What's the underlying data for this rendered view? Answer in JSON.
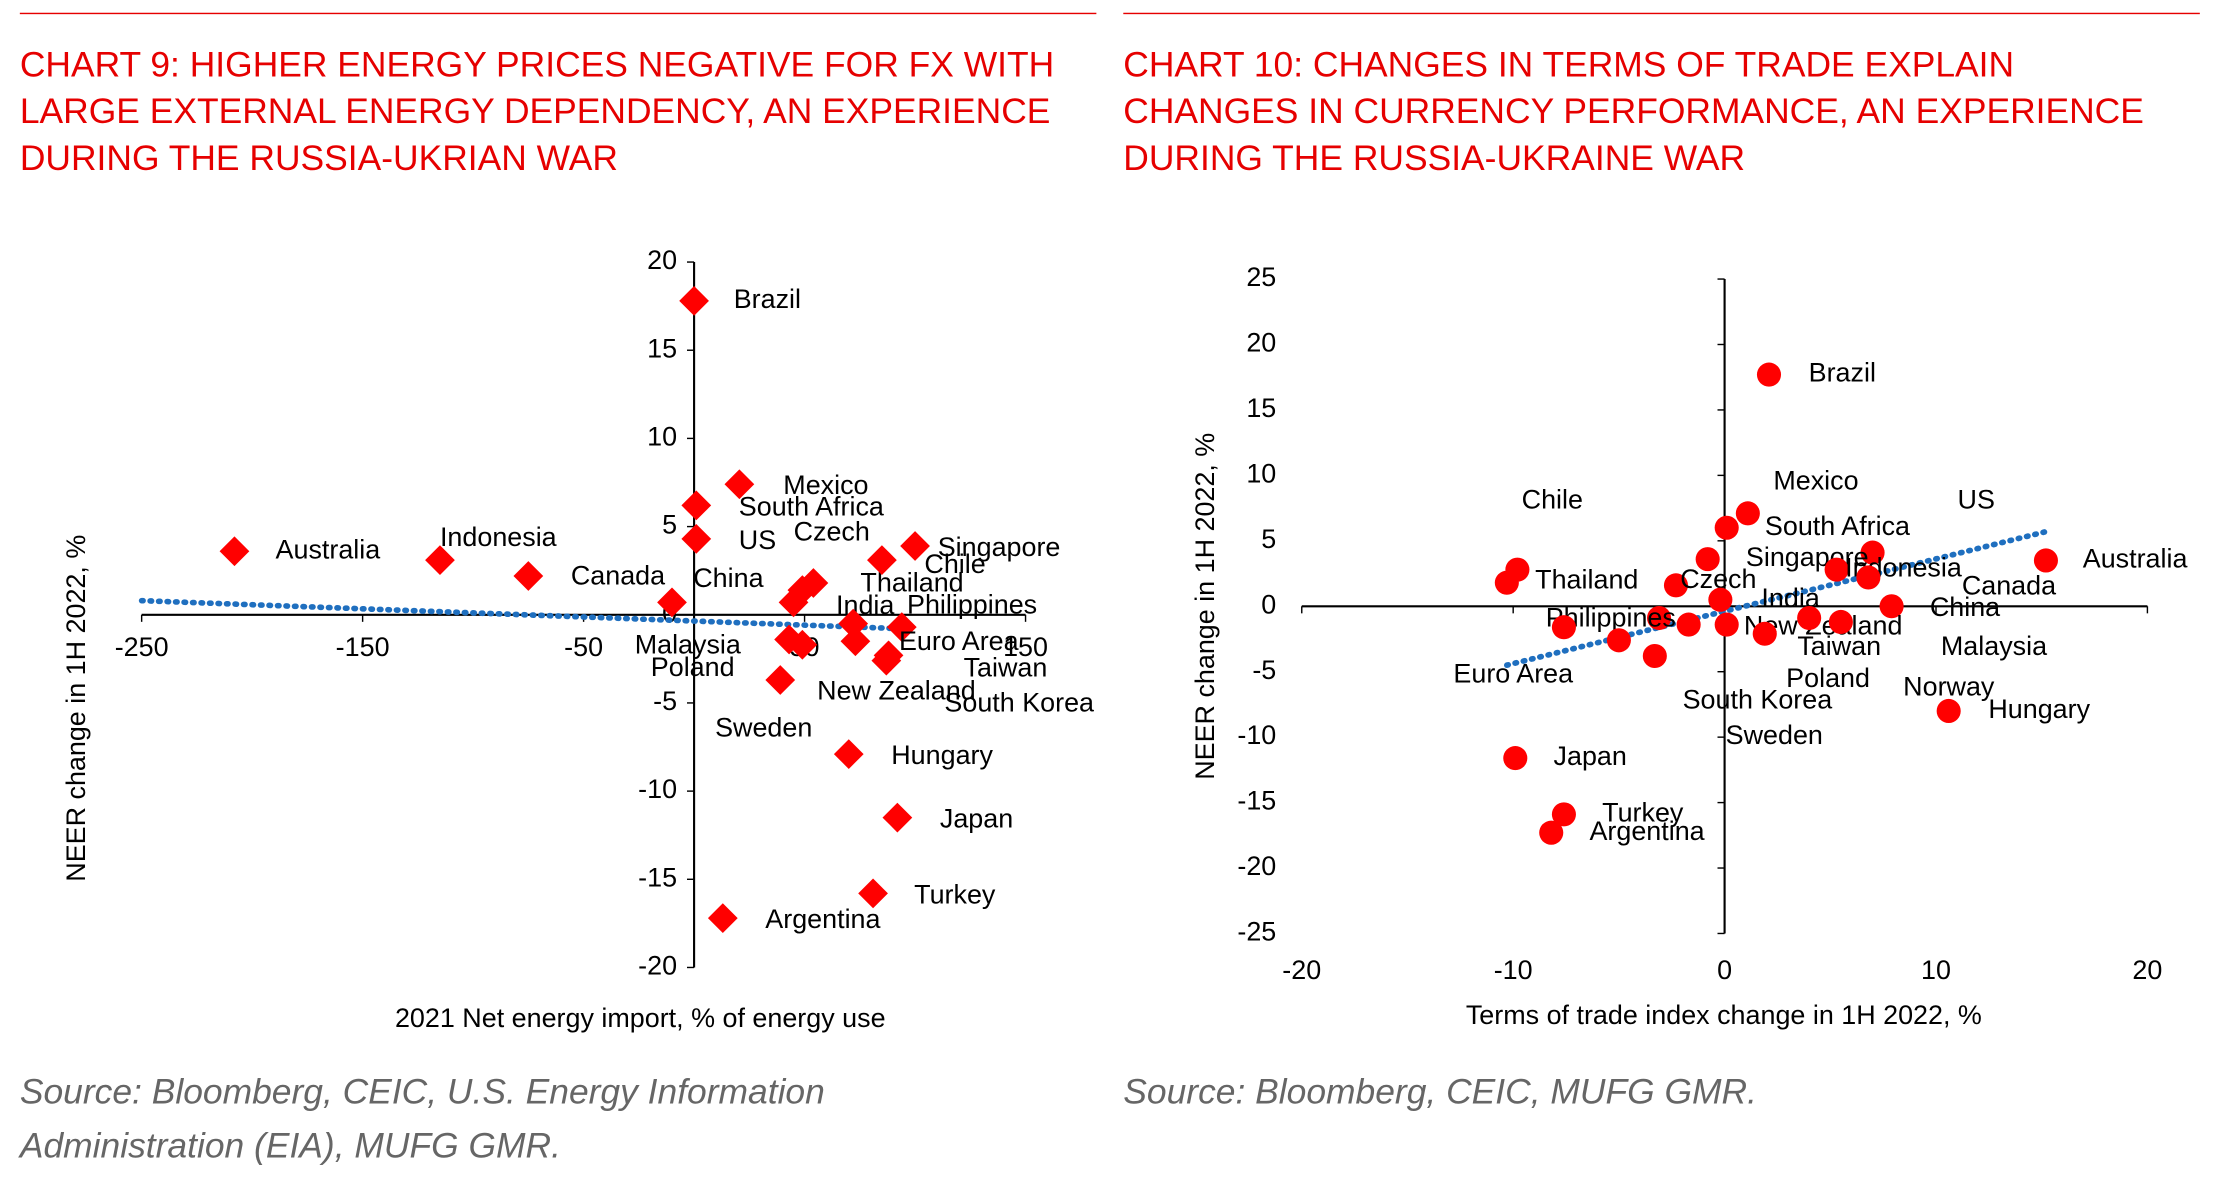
{
  "chart_data": [
    {
      "type": "scatter",
      "title": "CHART 9: HIGHER ENERGY PRICES NEGATIVE FOR FX WITH LARGE EXTERNAL ENERGY DEPENDENCY, AN EXPERIENCE DURING THE RUSSIA-UKRIAN WAR",
      "xlabel": "2021 Net energy import, % of energy use",
      "ylabel": "NEER change in 1H 2022, %",
      "source": "Source: Bloomberg, CEIC, U.S. Energy Information Administration (EIA), MUFG GMR.",
      "xlim": [
        -250,
        150
      ],
      "xticks": [
        -250,
        -150,
        -50,
        50,
        150
      ],
      "ylim": [
        -20,
        20
      ],
      "yticks": [
        -20,
        -15,
        -10,
        -5,
        0,
        5,
        10,
        15,
        20
      ],
      "marker": "diamond",
      "color": "#ff0000",
      "labels": [
        "Brazil",
        "Mexico",
        "South Africa",
        "US",
        "Australia",
        "Indonesia",
        "Canada",
        "China",
        "Czech",
        "Thailand",
        "India",
        "Philippines",
        "Chile",
        "Singapore",
        "Euro Area",
        "Malaysia",
        "Poland",
        "New Zealand",
        "Taiwan",
        "South Korea",
        "Sweden",
        "Hungary",
        "Japan",
        "Turkey",
        "Argentina"
      ],
      "x": [
        0,
        20.5,
        1,
        1,
        -208,
        -115,
        -75,
        -10,
        54,
        49,
        45,
        72,
        85,
        100,
        94,
        43,
        49,
        73,
        88,
        87,
        39,
        70,
        92,
        81,
        13
      ],
      "values": [
        17.8,
        7.4,
        6.2,
        4.3,
        3.6,
        3.1,
        2.2,
        0.7,
        1.8,
        1.4,
        0.7,
        -0.5,
        3.1,
        3.9,
        -0.7,
        -1.4,
        -1.7,
        -1.5,
        -2.3,
        -2.6,
        -3.7,
        -7.9,
        -11.5,
        -15.8,
        -17.2
      ],
      "trendline": {
        "x": [
          -250,
          96
        ],
        "values": [
          0.8,
          -0.8
        ],
        "color": "#1f6fbf"
      }
    },
    {
      "type": "scatter",
      "title": "CHART 10: CHANGES IN TERMS OF TRADE EXPLAIN CHANGES IN CURRENCY PERFORMANCE, AN EXPERIENCE DURING THE RUSSIA-UKRAINE WAR",
      "xlabel": "Terms of trade index change in 1H 2022, %",
      "ylabel": "NEER change in 1H 2022, %",
      "source": "Source: Bloomberg, CEIC, MUFG GMR.",
      "xlim": [
        -20,
        20
      ],
      "xticks": [
        -20,
        -10,
        0,
        10,
        20
      ],
      "ylim": [
        -25,
        25
      ],
      "yticks": [
        -25,
        -20,
        -15,
        -10,
        -5,
        0,
        5,
        10,
        15,
        20,
        25
      ],
      "marker": "circle",
      "color": "#ff0000",
      "labels": [
        "Brazil",
        "Mexico",
        "South Africa",
        "US",
        "Singapore",
        "Australia",
        "Indonesia",
        "Canada",
        "Chile",
        "Thailand",
        "Czech",
        "India",
        "China",
        "Philippines",
        "New Zealand",
        "Euro Area",
        "South Korea",
        "Sweden",
        "Poland",
        "Taiwan",
        "Malaysia",
        "Norway",
        "Hungary",
        "Japan",
        "Turkey",
        "Argentina"
      ],
      "x": [
        2.1,
        1.1,
        0.1,
        7.0,
        -0.8,
        15.2,
        5.3,
        6.8,
        -9.8,
        -10.3,
        -2.3,
        -0.2,
        7.9,
        -3.1,
        -1.7,
        -7.6,
        -5.0,
        -3.3,
        0.1,
        1.9,
        4.0,
        5.5,
        10.6,
        -9.9,
        -7.6,
        -8.2
      ],
      "values": [
        17.7,
        7.1,
        6.0,
        4.1,
        3.6,
        3.5,
        2.8,
        2.2,
        2.8,
        1.8,
        1.6,
        0.5,
        0,
        -0.9,
        -1.4,
        -1.6,
        -2.6,
        -3.8,
        -1.4,
        -2.1,
        -0.9,
        -1.2,
        -8.0,
        -11.6,
        -15.9,
        -17.3
      ],
      "trendline": {
        "x": [
          -10.3,
          15.2
        ],
        "values": [
          -4.5,
          5.7
        ],
        "color": "#1f6fbf"
      }
    }
  ]
}
